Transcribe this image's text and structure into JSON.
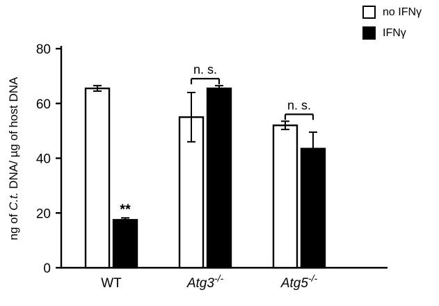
{
  "chart_data": {
    "type": "bar",
    "title": "",
    "xlabel": "",
    "ylabel": "ng of C.t. DNA/ µg of host DNA",
    "ylabel_parts": [
      "ng of ",
      "C.t.",
      " DNA/ µg of host DNA"
    ],
    "ylim": [
      0,
      80
    ],
    "yticks": [
      0,
      20,
      40,
      60,
      80
    ],
    "grid": false,
    "categories": [
      "WT",
      "Atg3-/-",
      "Atg5-/-"
    ],
    "categories_format": [
      {
        "label": "WT",
        "italic": false,
        "sup": ""
      },
      {
        "label": "Atg3",
        "italic": true,
        "sup": "-/-"
      },
      {
        "label": "Atg5",
        "italic": true,
        "sup": "-/-"
      }
    ],
    "series": [
      {
        "name": "no IFNγ",
        "fill": "#ffffff",
        "stroke": "#000000",
        "values": [
          65.5,
          55.0,
          52.0
        ],
        "errors": [
          1.0,
          9.0,
          1.5
        ]
      },
      {
        "name": "IFNγ",
        "fill": "#000000",
        "stroke": "#000000",
        "values": [
          17.5,
          65.5,
          43.5
        ],
        "errors": [
          0.7,
          1.0,
          6.0
        ]
      }
    ],
    "annotations": [
      {
        "group": 0,
        "type": "stars",
        "label": "**"
      },
      {
        "group": 1,
        "type": "bracket",
        "label": "n. s."
      },
      {
        "group": 2,
        "type": "bracket",
        "label": "n. s."
      }
    ],
    "legend": {
      "position": "top-right",
      "entries": [
        "no IFNγ",
        "IFNγ"
      ]
    },
    "colors": {
      "axis": "#000000",
      "bar_outline": "#000000",
      "text": "#000000",
      "background": "#ffffff"
    }
  }
}
